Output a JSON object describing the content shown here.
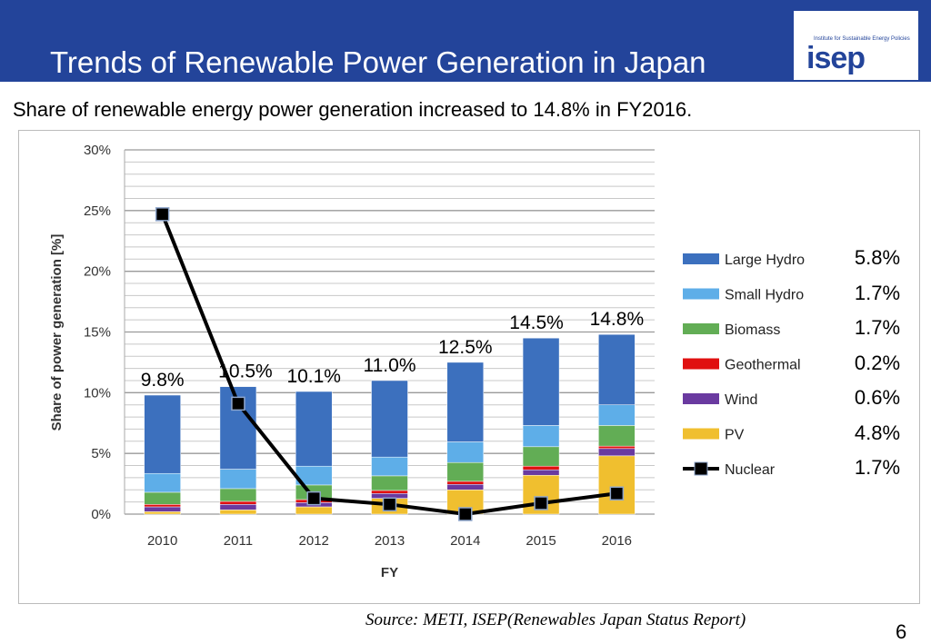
{
  "header": {
    "title": "Trends of Renewable Power Generation in Japan",
    "logo_small": "Institute for Sustainable Energy Policies",
    "logo_big": "isep"
  },
  "subtitle": "Share of renewable energy power generation increased to 14.8% in FY2016.",
  "source": "Source: METI, ISEP(Renewables Japan Status Report)",
  "page_number": "6",
  "right_labels": [
    "5.8%",
    "1.7%",
    "1.7%",
    "0.2%",
    "0.6%",
    "4.8%",
    "1.7%"
  ],
  "chart_data": {
    "type": "bar",
    "stacked": true,
    "xlabel": "FY",
    "ylabel": "Share of power generation [%]",
    "ylim": [
      0,
      30
    ],
    "yticks": [
      "0%",
      "5%",
      "10%",
      "15%",
      "20%",
      "25%",
      "30%"
    ],
    "grid": true,
    "legend_position": "right",
    "categories": [
      "2010",
      "2011",
      "2012",
      "2013",
      "2014",
      "2015",
      "2016"
    ],
    "series": [
      {
        "name": "PV",
        "color": "#f0bf2f",
        "values": [
          0.2,
          0.35,
          0.6,
          1.3,
          2.0,
          3.2,
          4.8
        ]
      },
      {
        "name": "Wind",
        "color": "#6a3aa0",
        "values": [
          0.4,
          0.45,
          0.35,
          0.4,
          0.45,
          0.45,
          0.6
        ]
      },
      {
        "name": "Geothermal",
        "color": "#e01010",
        "values": [
          0.2,
          0.25,
          0.25,
          0.25,
          0.25,
          0.3,
          0.2
        ]
      },
      {
        "name": "Biomass",
        "color": "#62ad55",
        "values": [
          1.0,
          1.05,
          1.2,
          1.2,
          1.55,
          1.6,
          1.7
        ]
      },
      {
        "name": "Small Hydro",
        "color": "#5eaee8",
        "values": [
          1.55,
          1.6,
          1.55,
          1.55,
          1.7,
          1.75,
          1.7
        ]
      },
      {
        "name": "Large Hydro",
        "color": "#3c70be",
        "values": [
          6.45,
          6.8,
          6.15,
          6.3,
          6.55,
          7.2,
          5.8
        ]
      }
    ],
    "line_series": {
      "name": "Nuclear",
      "color": "#000000",
      "values": [
        24.7,
        9.1,
        1.3,
        0.8,
        0.0,
        0.9,
        1.7
      ]
    },
    "total_labels": [
      "9.8%",
      "10.5%",
      "10.1%",
      "11.0%",
      "12.5%",
      "14.5%",
      "14.8%"
    ],
    "legend_order": [
      "Large Hydro",
      "Small Hydro",
      "Biomass",
      "Geothermal",
      "Wind",
      "PV",
      "Nuclear"
    ]
  }
}
